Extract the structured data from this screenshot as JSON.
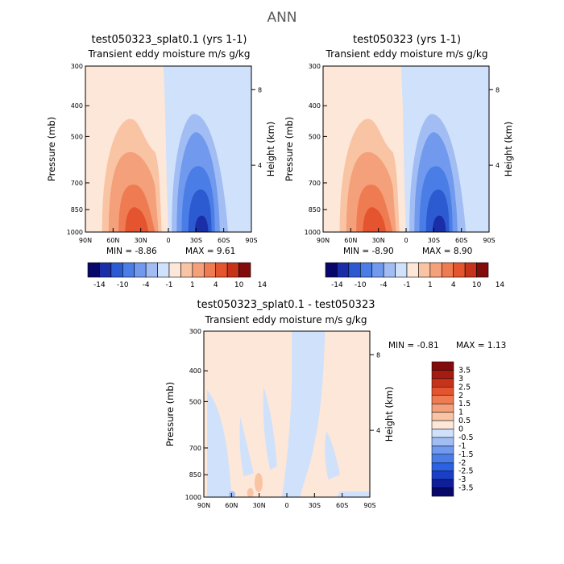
{
  "figure_title": "ANN",
  "panels": [
    {
      "title": "test050323_splat0.1 (yrs 1-1)",
      "subtitle": "Transient eddy moisture m/s g/kg",
      "ylabel": "Pressure (mb)",
      "ylabel_right": "Height (km)",
      "min_label": "MIN = -8.86",
      "max_label": "MAX = 9.61"
    },
    {
      "title": "test050323 (yrs 1-1)",
      "subtitle": "Transient eddy moisture m/s g/kg",
      "ylabel": "Pressure (mb)",
      "ylabel_right": "Height (km)",
      "min_label": "MIN = -8.90",
      "max_label": "MAX = 8.90"
    },
    {
      "title": "test050323_splat0.1 - test050323",
      "subtitle": "Transient eddy moisture m/s g/kg",
      "ylabel": "Pressure (mb)",
      "ylabel_right": "Height (km)",
      "min_label": "MIN = -0.81",
      "max_label": "MAX = 1.13"
    }
  ],
  "colors": {
    "full_scale": [
      "#08086b",
      "#1a2ea8",
      "#2c5ad0",
      "#4a7ee6",
      "#7199ee",
      "#a1bdf3",
      "#cfe1fb",
      "#fde7d8",
      "#f9c4a4",
      "#f4a07a",
      "#ef7b52",
      "#e4542f",
      "#c6321a",
      "#820c0c"
    ],
    "diff_scale": [
      "#08086b",
      "#0f1f9a",
      "#1a3ec6",
      "#2b61e3",
      "#4a7ee6",
      "#7199ee",
      "#a1bdf3",
      "#cfe1fb",
      "#fde7d8",
      "#f9c4a4",
      "#f4a07a",
      "#ef7b52",
      "#e4542f",
      "#c6321a",
      "#a51b12",
      "#820c0c"
    ]
  },
  "chart_data": [
    {
      "type": "heatmap",
      "title": "test050323_splat0.1 (yrs 1-1)",
      "subtitle": "Transient eddy moisture m/s g/kg",
      "xlabel": "",
      "x_ticks": [
        "90N",
        "60N",
        "30N",
        "0",
        "30S",
        "60S",
        "90S"
      ],
      "y_ticks": [
        300,
        400,
        500,
        700,
        850,
        1000
      ],
      "ylabel": "Pressure (mb)",
      "y2_ticks": [
        8,
        4
      ],
      "ylabel_right": "Height (km)",
      "ylim": [
        1000,
        300
      ],
      "y_scale": "log",
      "colorbar_labels": [
        "-14",
        "-10",
        "-4",
        "-1",
        "1",
        "4",
        "10",
        "14"
      ],
      "min": -8.86,
      "max": 9.61
    },
    {
      "type": "heatmap",
      "title": "test050323 (yrs 1-1)",
      "subtitle": "Transient eddy moisture m/s g/kg",
      "xlabel": "",
      "x_ticks": [
        "90N",
        "60N",
        "30N",
        "0",
        "30S",
        "60S",
        "90S"
      ],
      "y_ticks": [
        300,
        400,
        500,
        700,
        850,
        1000
      ],
      "ylabel": "Pressure (mb)",
      "y2_ticks": [
        8,
        4
      ],
      "ylabel_right": "Height (km)",
      "ylim": [
        1000,
        300
      ],
      "y_scale": "log",
      "colorbar_labels": [
        "-14",
        "-10",
        "-4",
        "-1",
        "1",
        "4",
        "10",
        "14"
      ],
      "min": -8.9,
      "max": 8.9
    },
    {
      "type": "heatmap",
      "title": "test050323_splat0.1 - test050323",
      "subtitle": "Transient eddy moisture m/s g/kg",
      "xlabel": "",
      "x_ticks": [
        "90N",
        "60N",
        "30N",
        "0",
        "30S",
        "60S",
        "90S"
      ],
      "y_ticks": [
        300,
        400,
        500,
        700,
        850,
        1000
      ],
      "ylabel": "Pressure (mb)",
      "y2_ticks": [
        8,
        4
      ],
      "ylabel_right": "Height (km)",
      "ylim": [
        1000,
        300
      ],
      "y_scale": "log",
      "colorbar_labels": [
        "3.5",
        "3",
        "2.5",
        "2",
        "1.5",
        "1",
        "0.5",
        "0",
        "-0.5",
        "-1",
        "-1.5",
        "-2",
        "-2.5",
        "-3",
        "-3.5"
      ],
      "min": -0.81,
      "max": 1.13
    }
  ]
}
